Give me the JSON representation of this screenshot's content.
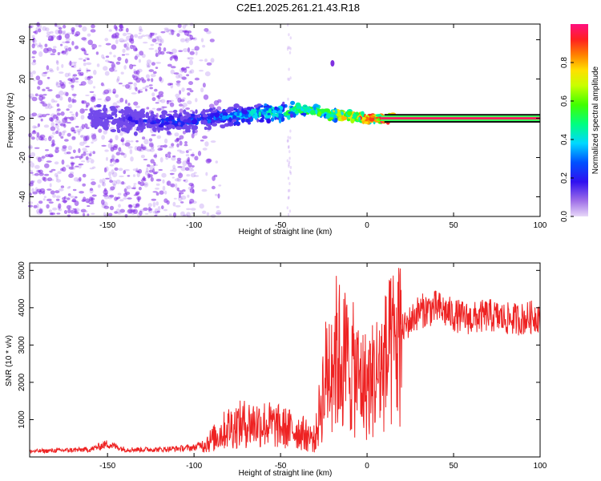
{
  "title": "C2E1.2025.261.21.43.R18",
  "chart_data": [
    {
      "type": "heatmap",
      "xlabel": "Height of straight line (km)",
      "ylabel": "Frequency (Hz)",
      "xlim": [
        -195,
        100
      ],
      "ylim": [
        -50,
        48
      ],
      "xticks": [
        -150,
        -100,
        -50,
        0,
        50,
        100
      ],
      "xtick_labels": [
        "-150",
        "-100",
        "-50",
        "0",
        "50",
        "100"
      ],
      "yticks": [
        -40,
        -20,
        0,
        20,
        40
      ],
      "ytick_labels": [
        "-40",
        "-20",
        "0",
        "20",
        "40"
      ],
      "colorbar": {
        "label": "Normalized spectral amplitude",
        "range": [
          0,
          1
        ],
        "ticks": [
          0.0,
          0.2,
          0.4,
          0.6,
          0.8
        ],
        "tick_labels": [
          "0.0",
          "0.2",
          "0.4",
          "0.6",
          "0.8"
        ],
        "colormap": "rainbow"
      },
      "trace": {
        "x": [
          -195,
          -150,
          -120,
          -100,
          -80,
          -70,
          -60,
          -50,
          -40,
          -30,
          -20,
          -10,
          0,
          15,
          100
        ],
        "freq": [
          0,
          0,
          -2,
          -1,
          1,
          2,
          3,
          3,
          5,
          4,
          2,
          1,
          0,
          0,
          0
        ],
        "amplitude": [
          0.05,
          0.15,
          0.25,
          0.3,
          0.35,
          0.4,
          0.45,
          0.5,
          0.55,
          0.6,
          0.7,
          0.8,
          0.9,
          1.0,
          1.0
        ]
      }
    },
    {
      "type": "line",
      "xlabel": "Height of straight line (km)",
      "ylabel": "SNR (10 * v/v)",
      "xlim": [
        -195,
        100
      ],
      "ylim": [
        0,
        5200
      ],
      "xticks": [
        -150,
        -100,
        -50,
        0,
        50,
        100
      ],
      "xtick_labels": [
        "-150",
        "-100",
        "-50",
        "0",
        "50",
        "100"
      ],
      "yticks": [
        1000,
        2000,
        3000,
        4000,
        5000
      ],
      "ytick_labels": [
        "1000",
        "2000",
        "3000",
        "4000",
        "5000"
      ],
      "color": "#ee2222",
      "series": [
        {
          "name": "SNR",
          "x": [
            -195,
            -160,
            -150,
            -140,
            -120,
            -100,
            -90,
            -80,
            -70,
            -60,
            -50,
            -40,
            -30,
            -25,
            -20,
            -15,
            -10,
            -5,
            0,
            10,
            20,
            30,
            40,
            50,
            60,
            70,
            80,
            90,
            100
          ],
          "values": [
            150,
            200,
            350,
            200,
            200,
            250,
            450,
            800,
            900,
            900,
            800,
            700,
            500,
            2000,
            3000,
            2800,
            2600,
            2200,
            2000,
            2600,
            3400,
            3900,
            4000,
            3800,
            3700,
            3800,
            3700,
            3700,
            3800
          ]
        }
      ]
    }
  ]
}
